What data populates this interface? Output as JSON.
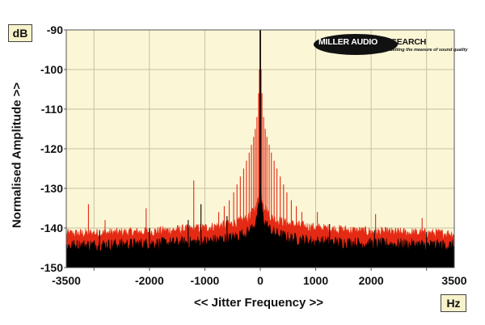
{
  "chart_data": {
    "type": "line",
    "ylabel": "Normalised Amplitude >>",
    "xlabel": "<< Jitter Frequency >>",
    "y_unit": "dB",
    "x_unit": "Hz",
    "xlim": [
      -3500,
      3500
    ],
    "ylim": [
      -150,
      -90
    ],
    "x_ticks": [
      -3500,
      -2000,
      -1000,
      0,
      1000,
      2000,
      3500
    ],
    "x_tick_labels": [
      "-3500",
      "-2000",
      "-1000",
      "0",
      "1000",
      "2000",
      "3500"
    ],
    "x_gridlines": [
      -3000,
      -2000,
      -1000,
      0,
      1000,
      2000,
      3000
    ],
    "y_ticks": [
      -150,
      -140,
      -130,
      -120,
      -110,
      -100,
      -90
    ],
    "y_tick_labels": [
      "-150",
      "-140",
      "-130",
      "-120",
      "-110",
      "-100",
      "-90"
    ],
    "grid": true,
    "series": [
      {
        "color": "#e42a14",
        "floor": [
          [
            -3500,
            -141.5
          ],
          [
            -2000,
            -141
          ],
          [
            -1000,
            -140
          ],
          [
            -500,
            -139
          ],
          [
            -200,
            -137.5
          ],
          [
            -50,
            -134
          ],
          [
            0,
            -128
          ],
          [
            50,
            -134
          ],
          [
            200,
            -137.5
          ],
          [
            500,
            -139
          ],
          [
            1000,
            -140
          ],
          [
            2000,
            -141
          ],
          [
            3500,
            -141.5
          ]
        ],
        "peaks": [
          [
            0,
            -90
          ],
          [
            -15,
            -100
          ],
          [
            15,
            -100
          ],
          [
            -30,
            -106
          ],
          [
            30,
            -106
          ],
          [
            -60,
            -112
          ],
          [
            60,
            -112
          ],
          [
            -90,
            -115
          ],
          [
            90,
            -115
          ],
          [
            -120,
            -117
          ],
          [
            120,
            -117
          ],
          [
            -160,
            -119
          ],
          [
            160,
            -119
          ],
          [
            -200,
            -121
          ],
          [
            200,
            -121
          ],
          [
            -250,
            -123
          ],
          [
            250,
            -123
          ],
          [
            -300,
            -125
          ],
          [
            300,
            -125
          ],
          [
            -360,
            -127
          ],
          [
            360,
            -127
          ],
          [
            -420,
            -129
          ],
          [
            420,
            -129
          ],
          [
            -480,
            -131
          ],
          [
            480,
            -131
          ],
          [
            -560,
            -133
          ],
          [
            560,
            -133
          ],
          [
            -650,
            -134.5
          ],
          [
            650,
            -134.5
          ],
          [
            -750,
            -136
          ],
          [
            750,
            -136
          ],
          [
            -1200,
            -128
          ],
          [
            -2060,
            -135
          ],
          [
            -3100,
            -134
          ],
          [
            -2800,
            -138
          ],
          [
            1030,
            -136
          ],
          [
            2080,
            -136.5
          ],
          [
            2920,
            -137.5
          ]
        ]
      },
      {
        "color": "#000000",
        "floor": [
          [
            -3500,
            -144.5
          ],
          [
            -2000,
            -144
          ],
          [
            -1000,
            -143.5
          ],
          [
            -500,
            -142.5
          ],
          [
            -200,
            -141
          ],
          [
            -60,
            -138
          ],
          [
            -20,
            -134
          ],
          [
            0,
            -128
          ],
          [
            20,
            -134
          ],
          [
            60,
            -138
          ],
          [
            200,
            -141
          ],
          [
            500,
            -142.5
          ],
          [
            1000,
            -143.5
          ],
          [
            2000,
            -144
          ],
          [
            3500,
            -144.5
          ]
        ],
        "peaks": [
          [
            0,
            -90
          ],
          [
            -1070,
            -134
          ],
          [
            -600,
            -137
          ],
          [
            -1300,
            -138
          ],
          [
            1250,
            -139
          ],
          [
            -2900,
            -140.5
          ],
          [
            -2000,
            -140
          ],
          [
            2060,
            -140.5
          ],
          [
            3000,
            -141
          ]
        ]
      }
    ]
  },
  "logo": {
    "name_part1": "MILLER AUDIO",
    "name_part2": " RESEARCH",
    "tagline": "Setting the measure of sound quality"
  },
  "colors": {
    "plot_bg": "#fbf6d6",
    "gridline": "#c6c2a0",
    "red_trace": "#e42a14",
    "black_trace": "#000000"
  }
}
